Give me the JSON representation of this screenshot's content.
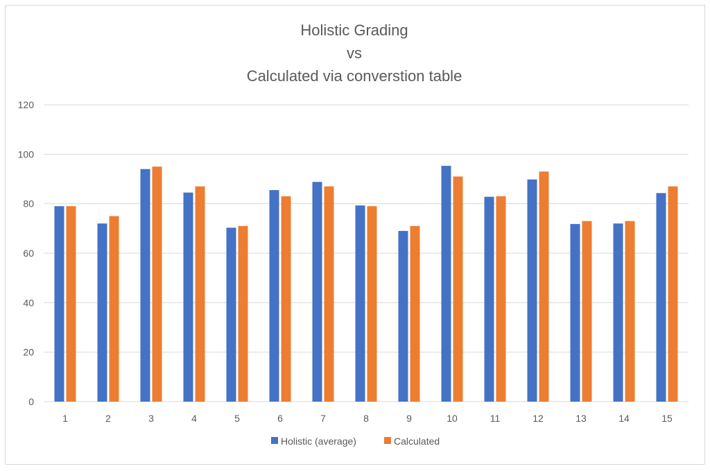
{
  "chart_data": {
    "type": "bar",
    "title_lines": [
      "Holistic Grading",
      "vs",
      "Calculated via converstion table"
    ],
    "categories": [
      "1",
      "2",
      "3",
      "4",
      "5",
      "6",
      "7",
      "8",
      "9",
      "10",
      "11",
      "12",
      "13",
      "14",
      "15"
    ],
    "series": [
      {
        "name": "Holistic (average)",
        "color": "#4472c4",
        "values": [
          79,
          72,
          94,
          84.5,
          70.3,
          85.5,
          88.8,
          79.3,
          69,
          95.3,
          82.8,
          89.8,
          71.8,
          72,
          84.3
        ]
      },
      {
        "name": "Calculated",
        "color": "#ed7d31",
        "values": [
          79,
          75,
          95,
          87,
          71,
          83,
          87,
          79,
          71,
          91,
          83,
          93,
          73,
          73,
          87
        ]
      }
    ],
    "ylim": [
      0,
      120
    ],
    "yticks": [
      0,
      20,
      40,
      60,
      80,
      100,
      120
    ],
    "grid": true,
    "gridline_color": "#d9d9d9",
    "legend_position": "bottom"
  }
}
